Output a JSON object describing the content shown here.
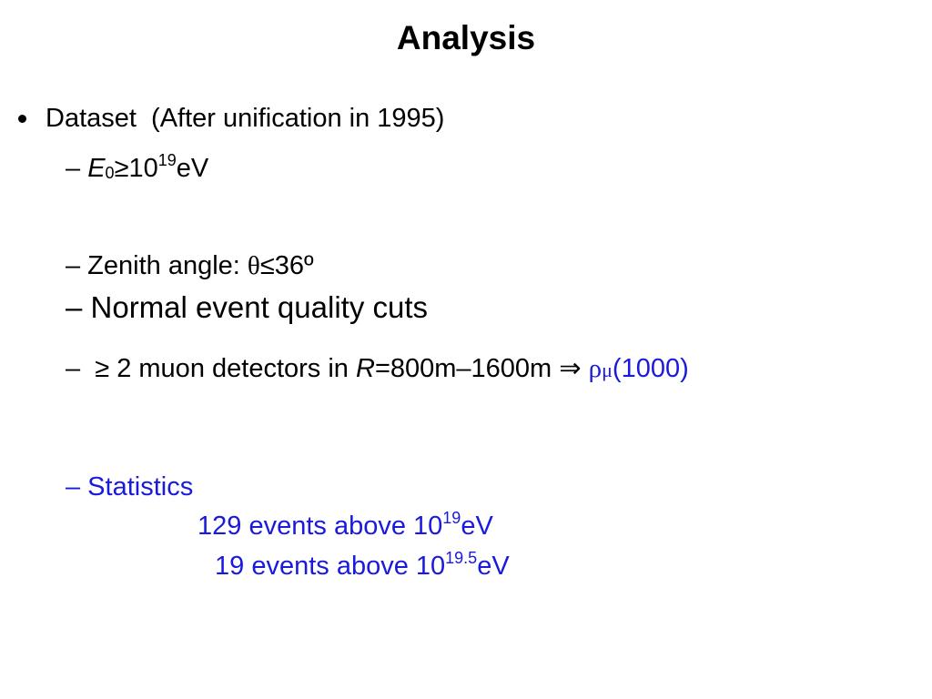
{
  "title": "Analysis",
  "dataset": "Dataset  (After unification in 1995)",
  "energy": {
    "dash": "–",
    "symbol": "E",
    "sub": "0",
    "relation": "≥10",
    "sup": "19",
    "unit": "eV"
  },
  "zenith": {
    "text": "– Zenith angle: ",
    "symbol": "θ",
    "limit": "≤36º"
  },
  "quality": "– Normal event quality cuts",
  "muon": {
    "text": "–  ≥ 2 muon detectors in ",
    "symbol": "R",
    "range": "=800m–1600m ⇒ ",
    "rho": "ρ",
    "mu": "μ",
    "distance": "(1000)"
  },
  "statistics": {
    "heading": "– Statistics",
    "lines": [
      {
        "text": "129 events above 10",
        "sup": "19",
        "unit": "eV"
      },
      {
        "text": "19 events above 10",
        "sup": "19.5",
        "unit": "eV"
      }
    ]
  }
}
